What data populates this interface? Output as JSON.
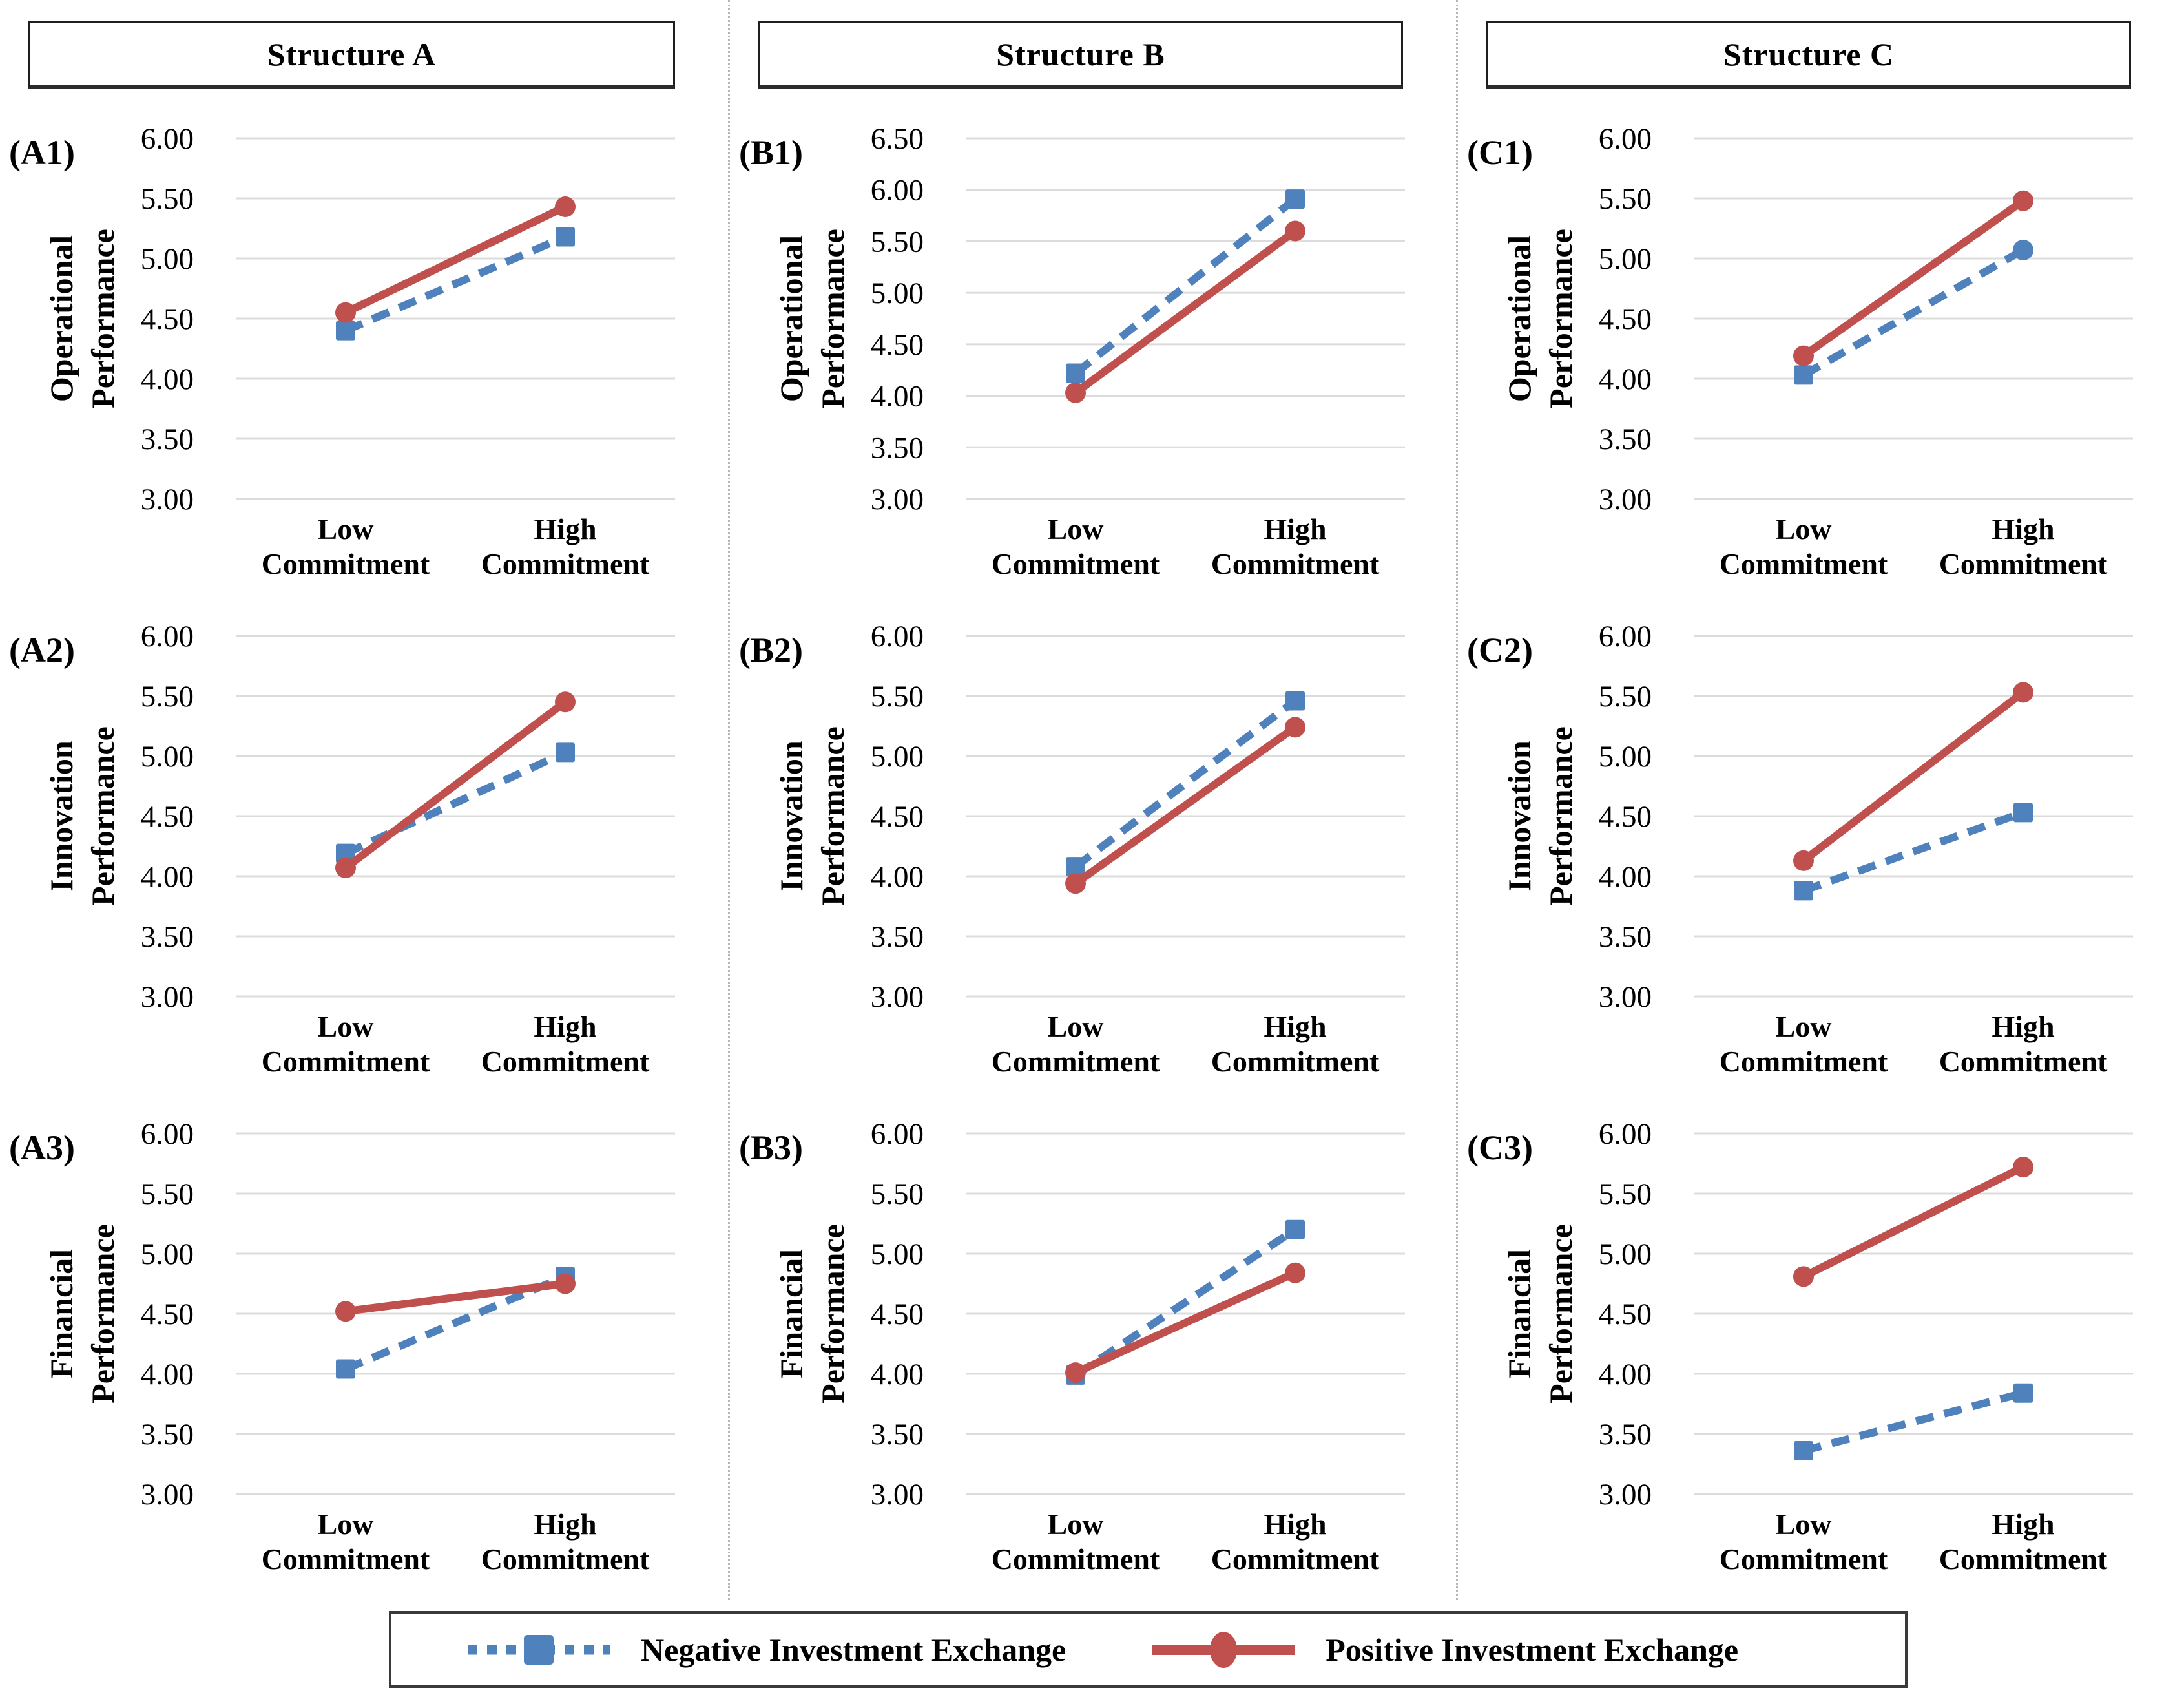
{
  "columns": [
    {
      "id": "A",
      "title": "Structure A"
    },
    {
      "id": "B",
      "title": "Structure B"
    },
    {
      "id": "C",
      "title": "Structure C"
    }
  ],
  "x_categories": [
    {
      "lines": [
        "Low",
        "Commitment"
      ]
    },
    {
      "lines": [
        "High",
        "Commitment"
      ]
    }
  ],
  "legend": {
    "items": [
      {
        "key": "negative",
        "label": "Negative Investment Exchange",
        "color": "#4F81BD",
        "line_style": "dashed",
        "marker": "square"
      },
      {
        "key": "positive",
        "label": "Positive Investment Exchange",
        "color": "#C0504D",
        "line_style": "solid",
        "marker": "circle"
      }
    ]
  },
  "chart_data": [
    {
      "id": "A1",
      "type": "line",
      "column": "Structure A",
      "panel_label": "(A1)",
      "ylabel_lines": [
        "Operational",
        "Performance"
      ],
      "ylabel": "Operational Performance",
      "categories": [
        "Low Commitment",
        "High Commitment"
      ],
      "ylim": [
        3.0,
        6.0
      ],
      "grid": true,
      "ytick_labels": [
        "6.00",
        "5.50",
        "5.00",
        "4.50",
        "4.00",
        "3.50",
        "3.00"
      ],
      "series": [
        {
          "key": "negative",
          "name": "Negative Investment Exchange",
          "marker": "square",
          "dash": true,
          "values": [
            4.4,
            5.18
          ]
        },
        {
          "key": "positive",
          "name": "Positive Investment Exchange",
          "marker": "circle",
          "dash": false,
          "values": [
            4.55,
            5.43
          ]
        }
      ]
    },
    {
      "id": "B1",
      "type": "line",
      "column": "Structure B",
      "panel_label": "(B1)",
      "ylabel_lines": [
        "Operational",
        "Performance"
      ],
      "ylabel": "Operational Performance",
      "categories": [
        "Low Commitment",
        "High Commitment"
      ],
      "ylim": [
        3.0,
        6.5
      ],
      "grid": true,
      "ytick_labels": [
        "6.50",
        "6.00",
        "5.50",
        "5.00",
        "4.50",
        "4.00",
        "3.50",
        "3.00"
      ],
      "series": [
        {
          "key": "negative",
          "name": "Negative Investment Exchange",
          "marker": "square",
          "dash": true,
          "values": [
            4.22,
            5.91
          ]
        },
        {
          "key": "positive",
          "name": "Positive Investment Exchange",
          "marker": "circle",
          "dash": false,
          "values": [
            4.03,
            5.6
          ]
        }
      ]
    },
    {
      "id": "C1",
      "type": "line",
      "column": "Structure C",
      "panel_label": "(C1)",
      "ylabel_lines": [
        "Operational",
        "Performance"
      ],
      "ylabel": "Operational Performance",
      "categories": [
        "Low Commitment",
        "High Commitment"
      ],
      "ylim": [
        3.0,
        6.0
      ],
      "grid": true,
      "ytick_labels": [
        "6.00",
        "5.50",
        "5.00",
        "4.50",
        "4.00",
        "3.50",
        "3.00"
      ],
      "series": [
        {
          "key": "negative",
          "name": "Negative Investment Exchange",
          "marker": "square",
          "dash": true,
          "values": [
            4.03,
            5.07
          ],
          "point_markers": [
            "square",
            "circle"
          ]
        },
        {
          "key": "positive",
          "name": "Positive Investment Exchange",
          "marker": "circle",
          "dash": false,
          "values": [
            4.19,
            5.48
          ]
        }
      ]
    },
    {
      "id": "A2",
      "type": "line",
      "column": "Structure A",
      "panel_label": "(A2)",
      "ylabel_lines": [
        "Innovation",
        "Performance"
      ],
      "ylabel": "Innovation Performance",
      "categories": [
        "Low Commitment",
        "High Commitment"
      ],
      "ylim": [
        3.0,
        6.0
      ],
      "grid": true,
      "ytick_labels": [
        "6.00",
        "5.50",
        "5.00",
        "4.50",
        "4.00",
        "3.50",
        "3.00"
      ],
      "series": [
        {
          "key": "negative",
          "name": "Negative Investment Exchange",
          "marker": "square",
          "dash": true,
          "values": [
            4.19,
            5.03
          ]
        },
        {
          "key": "positive",
          "name": "Positive Investment Exchange",
          "marker": "circle",
          "dash": false,
          "values": [
            4.07,
            5.45
          ]
        }
      ]
    },
    {
      "id": "B2",
      "type": "line",
      "column": "Structure B",
      "panel_label": "(B2)",
      "ylabel_lines": [
        "Innovation",
        "Performance"
      ],
      "ylabel": "Innovation Performance",
      "categories": [
        "Low Commitment",
        "High Commitment"
      ],
      "ylim": [
        3.0,
        6.0
      ],
      "grid": true,
      "ytick_labels": [
        "6.00",
        "5.50",
        "5.00",
        "4.50",
        "4.00",
        "3.50",
        "3.00"
      ],
      "series": [
        {
          "key": "negative",
          "name": "Negative Investment Exchange",
          "marker": "square",
          "dash": true,
          "values": [
            4.08,
            5.46
          ]
        },
        {
          "key": "positive",
          "name": "Positive Investment Exchange",
          "marker": "circle",
          "dash": false,
          "values": [
            3.94,
            5.24
          ]
        }
      ]
    },
    {
      "id": "C2",
      "type": "line",
      "column": "Structure C",
      "panel_label": "(C2)",
      "ylabel_lines": [
        "Innovation",
        "Performance"
      ],
      "ylabel": "Innovation Performance",
      "categories": [
        "Low Commitment",
        "High Commitment"
      ],
      "ylim": [
        3.0,
        6.0
      ],
      "grid": true,
      "ytick_labels": [
        "6.00",
        "5.50",
        "5.00",
        "4.50",
        "4.00",
        "3.50",
        "3.00"
      ],
      "series": [
        {
          "key": "negative",
          "name": "Negative Investment Exchange",
          "marker": "square",
          "dash": true,
          "values": [
            3.88,
            4.53
          ]
        },
        {
          "key": "positive",
          "name": "Positive Investment Exchange",
          "marker": "circle",
          "dash": false,
          "values": [
            4.13,
            5.53
          ]
        }
      ]
    },
    {
      "id": "A3",
      "type": "line",
      "column": "Structure A",
      "panel_label": "(A3)",
      "ylabel_lines": [
        "Financial",
        "Performance"
      ],
      "ylabel": "Financial Performance",
      "categories": [
        "Low Commitment",
        "High Commitment"
      ],
      "ylim": [
        3.0,
        6.0
      ],
      "grid": true,
      "ytick_labels": [
        "6.00",
        "5.50",
        "5.00",
        "4.50",
        "4.00",
        "3.50",
        "3.00"
      ],
      "series": [
        {
          "key": "negative",
          "name": "Negative Investment Exchange",
          "marker": "square",
          "dash": true,
          "values": [
            4.04,
            4.81
          ]
        },
        {
          "key": "positive",
          "name": "Positive Investment Exchange",
          "marker": "circle",
          "dash": false,
          "values": [
            4.52,
            4.75
          ]
        }
      ]
    },
    {
      "id": "B3",
      "type": "line",
      "column": "Structure B",
      "panel_label": "(B3)",
      "ylabel_lines": [
        "Financial",
        "Performance"
      ],
      "ylabel": "Financial Performance",
      "categories": [
        "Low Commitment",
        "High Commitment"
      ],
      "ylim": [
        3.0,
        6.0
      ],
      "grid": true,
      "ytick_labels": [
        "6.00",
        "5.50",
        "5.00",
        "4.50",
        "4.00",
        "3.50",
        "3.00"
      ],
      "series": [
        {
          "key": "negative",
          "name": "Negative Investment Exchange",
          "marker": "square",
          "dash": true,
          "values": [
            3.99,
            5.2
          ]
        },
        {
          "key": "positive",
          "name": "Positive Investment Exchange",
          "marker": "circle",
          "dash": false,
          "values": [
            4.01,
            4.84
          ]
        }
      ]
    },
    {
      "id": "C3",
      "type": "line",
      "column": "Structure C",
      "panel_label": "(C3)",
      "ylabel_lines": [
        "Financial",
        "Performance"
      ],
      "ylabel": "Financial Performance",
      "categories": [
        "Low Commitment",
        "High Commitment"
      ],
      "ylim": [
        3.0,
        6.0
      ],
      "grid": true,
      "ytick_labels": [
        "6.00",
        "5.50",
        "5.00",
        "4.50",
        "4.00",
        "3.50",
        "3.00"
      ],
      "series": [
        {
          "key": "negative",
          "name": "Negative Investment Exchange",
          "marker": "square",
          "dash": true,
          "values": [
            3.36,
            3.84
          ]
        },
        {
          "key": "positive",
          "name": "Positive Investment Exchange",
          "marker": "circle",
          "dash": false,
          "values": [
            4.81,
            5.72
          ]
        }
      ]
    }
  ]
}
